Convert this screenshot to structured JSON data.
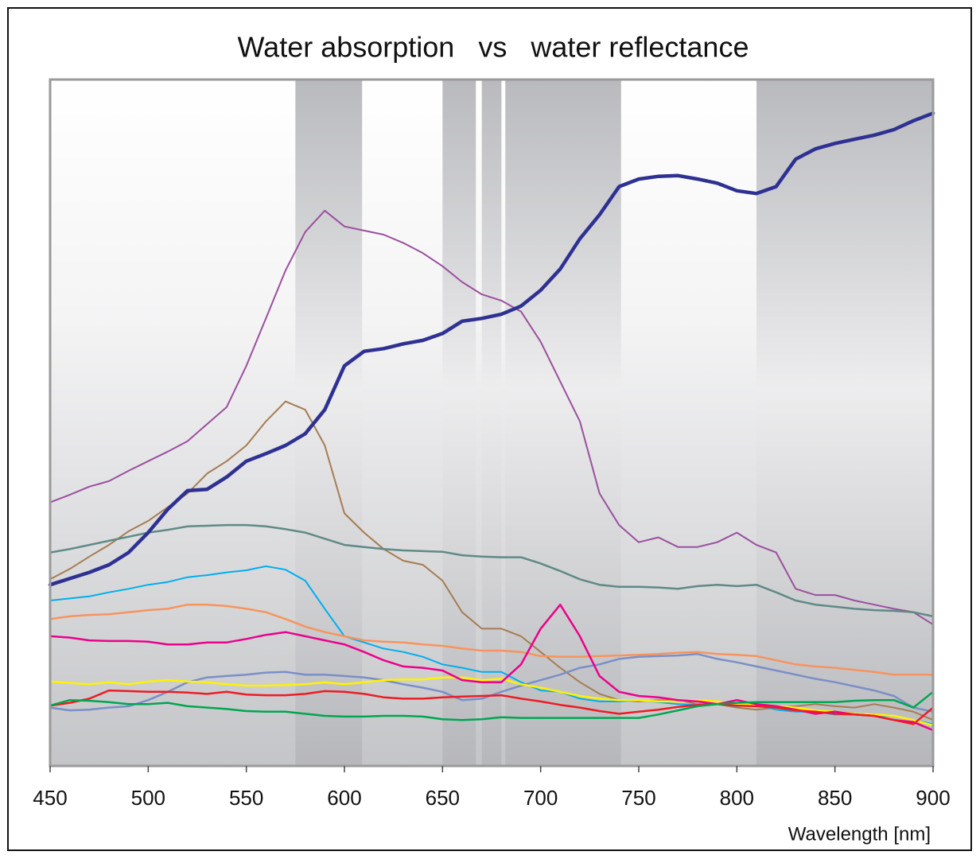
{
  "chart_data": {
    "type": "line",
    "title": "Water absorption   vs   water reflectance",
    "x_label": "Wavelength [nm]",
    "xlim": [
      450,
      900
    ],
    "xticks": [
      450,
      500,
      550,
      600,
      650,
      700,
      750,
      800,
      850,
      900
    ],
    "ylim": [
      0,
      100
    ],
    "bands": [
      [
        575,
        609
      ],
      [
        650,
        667
      ],
      [
        670,
        680
      ],
      [
        682,
        741
      ],
      [
        810,
        900
      ]
    ],
    "x": [
      450,
      460,
      470,
      480,
      490,
      500,
      510,
      520,
      530,
      540,
      550,
      560,
      570,
      580,
      590,
      600,
      610,
      620,
      630,
      640,
      650,
      660,
      670,
      680,
      690,
      700,
      710,
      720,
      730,
      740,
      750,
      760,
      770,
      780,
      790,
      800,
      810,
      820,
      830,
      840,
      850,
      860,
      870,
      880,
      890,
      900
    ],
    "series": [
      {
        "color": "#9b4f9f",
        "width": 2,
        "values": [
          38.4,
          39.5,
          40.7,
          41.5,
          43.0,
          44.4,
          45.8,
          47.3,
          49.8,
          52.3,
          58.3,
          65.2,
          72.2,
          77.8,
          80.9,
          78.6,
          78.0,
          77.4,
          76.2,
          74.7,
          72.8,
          70.5,
          68.7,
          67.8,
          66.2,
          61.8,
          56.0,
          50.2,
          39.7,
          35.1,
          32.6,
          33.3,
          31.9,
          31.9,
          32.6,
          34.0,
          32.2,
          31.1,
          25.8,
          24.9,
          24.9,
          24.1,
          23.5,
          22.9,
          22.4,
          20.6
        ]
      },
      {
        "color": "#a67c52",
        "width": 2,
        "values": [
          27.2,
          28.7,
          30.5,
          32.2,
          34.2,
          35.7,
          37.7,
          39.7,
          42.6,
          44.4,
          46.7,
          50.2,
          53.1,
          51.9,
          46.7,
          36.8,
          34.0,
          31.6,
          29.9,
          29.3,
          27.0,
          22.4,
          20.0,
          20.0,
          18.9,
          16.6,
          14.3,
          12.2,
          10.5,
          9.6,
          9.4,
          9.6,
          9.6,
          9.0,
          9.0,
          8.5,
          8.2,
          8.5,
          8.7,
          9.0,
          8.7,
          8.5,
          9.0,
          8.5,
          7.9,
          6.7
        ]
      },
      {
        "color": "#5f8a86",
        "width": 2.5,
        "values": [
          31.1,
          31.6,
          32.2,
          32.8,
          33.4,
          34.0,
          34.4,
          34.9,
          35.0,
          35.1,
          35.1,
          34.9,
          34.5,
          34.0,
          33.1,
          32.2,
          31.9,
          31.6,
          31.4,
          31.3,
          31.2,
          30.7,
          30.5,
          30.4,
          30.4,
          29.5,
          28.4,
          27.2,
          26.4,
          26.1,
          26.1,
          26.0,
          25.8,
          26.2,
          26.4,
          26.2,
          26.4,
          25.3,
          24.1,
          23.5,
          23.2,
          22.9,
          22.7,
          22.6,
          22.4,
          21.8
        ]
      },
      {
        "color": "#00aeef",
        "width": 2,
        "values": [
          24.1,
          24.4,
          24.7,
          25.3,
          25.8,
          26.4,
          26.8,
          27.5,
          27.8,
          28.2,
          28.5,
          29.1,
          28.6,
          27.0,
          22.9,
          18.9,
          18.0,
          17.1,
          16.6,
          15.9,
          14.8,
          14.3,
          13.7,
          13.7,
          12.2,
          11.0,
          10.8,
          9.8,
          9.4,
          9.4,
          9.6,
          9.3,
          9.0,
          8.9,
          9.0,
          8.7,
          8.9,
          8.2,
          7.9,
          7.9,
          7.5,
          7.5,
          7.3,
          7.3,
          6.7,
          6.1
        ]
      },
      {
        "color": "#f7945d",
        "width": 2.5,
        "values": [
          21.4,
          21.8,
          22.0,
          22.1,
          22.4,
          22.7,
          22.9,
          23.5,
          23.5,
          23.3,
          22.9,
          22.4,
          21.4,
          20.3,
          19.5,
          18.9,
          18.3,
          18.1,
          18.0,
          17.7,
          17.5,
          17.1,
          16.8,
          16.8,
          16.6,
          16.0,
          15.9,
          15.9,
          16.0,
          16.1,
          16.2,
          16.3,
          16.5,
          16.6,
          16.3,
          16.2,
          16.0,
          15.4,
          14.8,
          14.5,
          14.3,
          14.0,
          13.7,
          13.3,
          13.3,
          13.3
        ]
      },
      {
        "color": "#7b8fc7",
        "width": 2.5,
        "values": [
          8.5,
          8.1,
          8.2,
          8.5,
          8.7,
          9.6,
          10.8,
          12.2,
          12.9,
          13.1,
          13.3,
          13.6,
          13.7,
          13.3,
          13.3,
          13.1,
          12.9,
          12.5,
          11.9,
          11.4,
          10.8,
          9.6,
          9.8,
          10.8,
          11.7,
          12.5,
          13.3,
          14.3,
          14.8,
          15.6,
          15.9,
          16.0,
          16.1,
          16.3,
          15.6,
          15.1,
          14.5,
          13.9,
          13.3,
          12.7,
          12.2,
          11.6,
          11.0,
          10.2,
          8.5,
          7.9
        ]
      },
      {
        "color": "#fff200",
        "width": 2.5,
        "values": [
          12.3,
          12.1,
          11.9,
          12.2,
          11.9,
          12.3,
          12.5,
          12.3,
          12.2,
          11.9,
          11.7,
          11.7,
          11.8,
          11.9,
          12.2,
          11.9,
          12.2,
          12.5,
          12.6,
          12.6,
          12.9,
          12.9,
          12.5,
          12.7,
          11.9,
          11.4,
          10.8,
          10.2,
          9.8,
          9.6,
          9.6,
          9.4,
          9.4,
          9.6,
          9.4,
          9.0,
          9.0,
          8.7,
          8.5,
          8.1,
          7.9,
          7.6,
          7.5,
          7.3,
          6.7,
          5.9
        ]
      },
      {
        "color": "#ec008c",
        "width": 2.5,
        "values": [
          18.9,
          18.7,
          18.3,
          18.2,
          18.2,
          18.1,
          17.7,
          17.7,
          18.0,
          18.0,
          18.5,
          19.1,
          19.5,
          18.9,
          18.3,
          17.7,
          16.6,
          15.4,
          14.5,
          14.3,
          13.9,
          12.5,
          12.2,
          12.2,
          14.8,
          20.0,
          23.5,
          18.9,
          13.1,
          10.8,
          10.2,
          10.0,
          9.6,
          9.4,
          9.0,
          9.6,
          9.0,
          8.7,
          8.2,
          7.6,
          7.9,
          7.5,
          7.3,
          6.7,
          6.4,
          5.2
        ]
      },
      {
        "color": "#ed1c24",
        "width": 2.5,
        "values": [
          8.8,
          9.2,
          9.8,
          11.0,
          10.9,
          10.8,
          10.8,
          10.7,
          10.5,
          10.8,
          10.4,
          10.3,
          10.3,
          10.5,
          10.9,
          10.8,
          10.5,
          10.0,
          9.8,
          9.8,
          10.0,
          10.1,
          10.2,
          10.3,
          9.8,
          9.4,
          8.9,
          8.5,
          8.0,
          7.6,
          7.9,
          8.2,
          8.6,
          8.9,
          9.0,
          8.8,
          8.7,
          8.5,
          8.1,
          7.9,
          7.6,
          7.5,
          7.3,
          6.7,
          6.1,
          8.5
        ]
      },
      {
        "color": "#00a651",
        "width": 2.5,
        "values": [
          8.8,
          9.6,
          9.5,
          9.3,
          9.0,
          9.0,
          9.2,
          8.7,
          8.5,
          8.3,
          8.0,
          7.9,
          7.9,
          7.6,
          7.3,
          7.2,
          7.2,
          7.3,
          7.3,
          7.2,
          6.8,
          6.7,
          6.8,
          7.1,
          7.0,
          7.0,
          7.0,
          7.0,
          7.0,
          7.0,
          7.0,
          7.5,
          8.1,
          8.7,
          9.0,
          9.2,
          9.3,
          9.3,
          9.3,
          9.3,
          9.3,
          9.5,
          9.6,
          9.6,
          8.5,
          10.8
        ]
      },
      {
        "color": "#2e3192",
        "width": 4.5,
        "values": [
          26.4,
          27.3,
          28.2,
          29.3,
          31.1,
          34.0,
          37.4,
          40.1,
          40.3,
          42.1,
          44.4,
          45.5,
          46.7,
          48.4,
          51.9,
          58.3,
          60.4,
          60.8,
          61.5,
          62.0,
          63.0,
          64.8,
          65.2,
          65.8,
          67.0,
          69.3,
          72.4,
          76.8,
          80.3,
          84.4,
          85.5,
          85.9,
          86.0,
          85.5,
          84.9,
          83.8,
          83.4,
          84.4,
          88.4,
          89.9,
          90.7,
          91.3,
          91.9,
          92.7,
          94.0,
          95.1
        ]
      }
    ]
  }
}
